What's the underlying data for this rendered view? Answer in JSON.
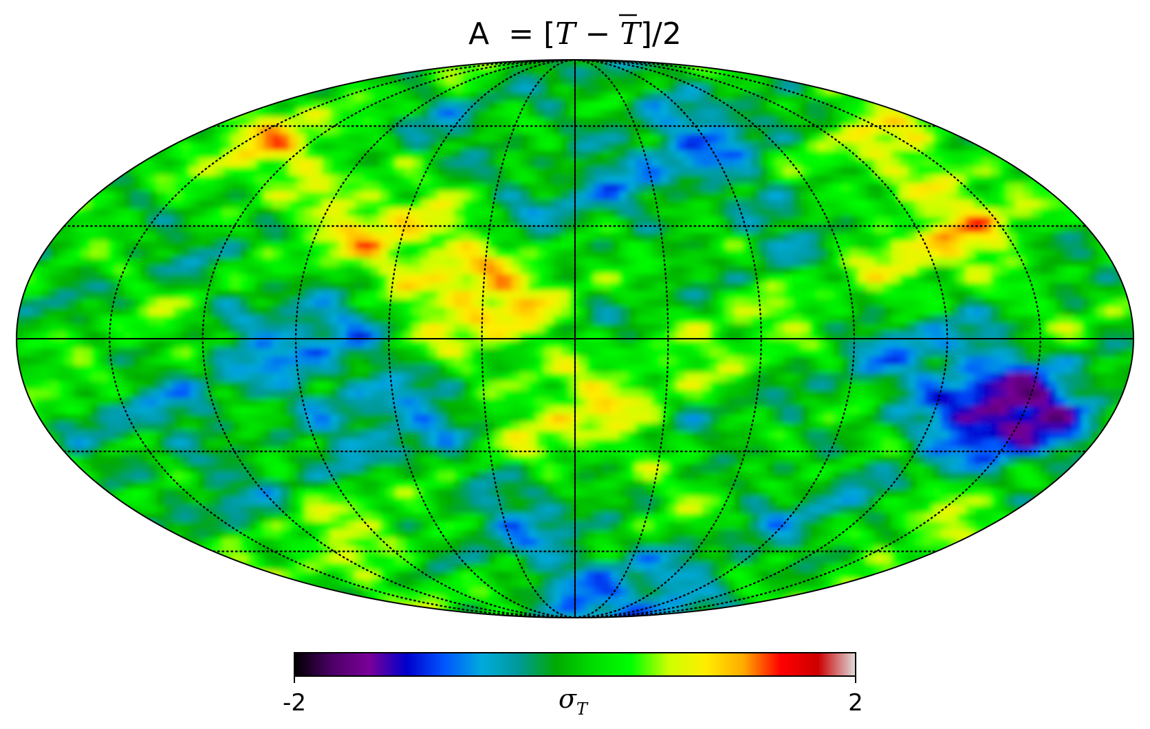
{
  "map": {
    "title_prefix": "A",
    "title_eq": " = [",
    "title_T": "T",
    "title_minus": " − ",
    "title_Tbar": "T",
    "title_suffix": "]/2",
    "projection": "mollweide",
    "graticule": {
      "style": "dotted",
      "parallels_deg": [
        -60,
        -30,
        0,
        30,
        60
      ],
      "meridians_deg": [
        -150,
        -120,
        -90,
        -60,
        -30,
        0,
        30,
        60,
        90,
        120,
        150
      ]
    },
    "colormap": [
      "#000000",
      "#4b0066",
      "#7a0099",
      "#0000cc",
      "#0055ff",
      "#00aadd",
      "#009999",
      "#00aa00",
      "#00dd00",
      "#00ff00",
      "#ccff00",
      "#ffee00",
      "#ffaa00",
      "#ff0000",
      "#cc0000",
      "#dddddd"
    ]
  },
  "colorbar": {
    "min_label": "-2",
    "max_label": "2",
    "unit_symbol": "σ",
    "unit_sub": "T",
    "range": [
      -2,
      2
    ]
  }
}
